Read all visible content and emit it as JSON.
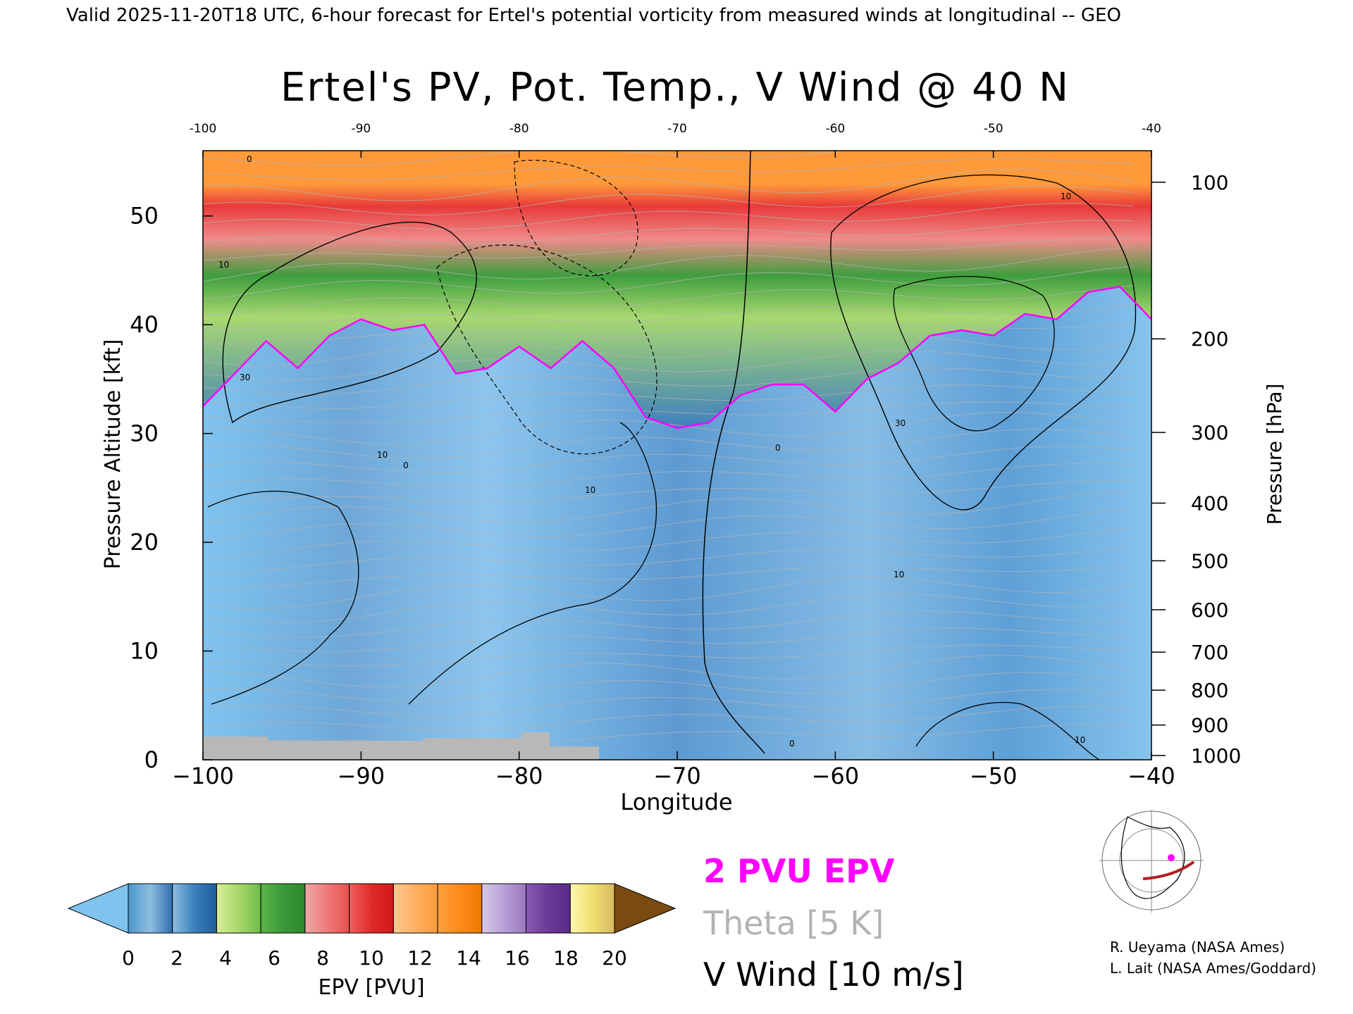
{
  "header": {
    "valid_line": "Valid 2025-11-20T18 UTC, 6-hour forecast for Ertel's potential vorticity from measured winds at longitudinal -- GEO"
  },
  "chart_data": {
    "type": "heatmap",
    "title": "Ertel's PV, Pot. Temp., V Wind @ 40 N",
    "xlabel": "Longitude",
    "ylabel": "Pressure Altitude [kft]",
    "y2label": "Pressure [hPa]",
    "xlim": [
      -100,
      -40
    ],
    "ylim": [
      0,
      56
    ],
    "x_ticks": [
      "−100",
      "−90",
      "−80",
      "−70",
      "−60",
      "−50",
      "−40"
    ],
    "x_top_ticks": [
      "-100",
      "-90",
      "-80",
      "-70",
      "-60",
      "-50",
      "-40"
    ],
    "x_tick_values": [
      -100,
      -90,
      -80,
      -70,
      -60,
      -50,
      -40
    ],
    "y_ticks": [
      "0",
      "10",
      "20",
      "30",
      "40",
      "50"
    ],
    "y_tick_values": [
      0,
      10,
      20,
      30,
      40,
      50
    ],
    "pressure_ticks": [
      {
        "label": "100",
        "kft": 53.1
      },
      {
        "label": "200",
        "kft": 38.7
      },
      {
        "label": "300",
        "kft": 30.1
      },
      {
        "label": "400",
        "kft": 23.6
      },
      {
        "label": "500",
        "kft": 18.3
      },
      {
        "label": "600",
        "kft": 13.8
      },
      {
        "label": "700",
        "kft": 9.9
      },
      {
        "label": "800",
        "kft": 6.4
      },
      {
        "label": "900",
        "kft": 3.2
      },
      {
        "label": "1000",
        "kft": 0.4
      }
    ],
    "tropopause_2pvu_kft": [
      {
        "lon": -100,
        "kft": 32.5
      },
      {
        "lon": -98,
        "kft": 35.5
      },
      {
        "lon": -96,
        "kft": 38.5
      },
      {
        "lon": -94,
        "kft": 36.0
      },
      {
        "lon": -92,
        "kft": 39.0
      },
      {
        "lon": -90,
        "kft": 40.5
      },
      {
        "lon": -88,
        "kft": 39.5
      },
      {
        "lon": -86,
        "kft": 40.0
      },
      {
        "lon": -84,
        "kft": 35.5
      },
      {
        "lon": -82,
        "kft": 36.0
      },
      {
        "lon": -80,
        "kft": 38.0
      },
      {
        "lon": -78,
        "kft": 36.0
      },
      {
        "lon": -76,
        "kft": 38.5
      },
      {
        "lon": -74,
        "kft": 36.0
      },
      {
        "lon": -72,
        "kft": 31.5
      },
      {
        "lon": -70,
        "kft": 30.5
      },
      {
        "lon": -68,
        "kft": 31.0
      },
      {
        "lon": -66,
        "kft": 33.5
      },
      {
        "lon": -64,
        "kft": 34.5
      },
      {
        "lon": -62,
        "kft": 34.5
      },
      {
        "lon": -60,
        "kft": 32.0
      },
      {
        "lon": -58,
        "kft": 35.0
      },
      {
        "lon": -56,
        "kft": 36.5
      },
      {
        "lon": -54,
        "kft": 39.0
      },
      {
        "lon": -52,
        "kft": 39.5
      },
      {
        "lon": -50,
        "kft": 39.0
      },
      {
        "lon": -48,
        "kft": 41.0
      },
      {
        "lon": -46,
        "kft": 40.5
      },
      {
        "lon": -44,
        "kft": 43.0
      },
      {
        "lon": -42,
        "kft": 43.5
      },
      {
        "lon": -40,
        "kft": 40.5
      }
    ],
    "contour_labels": [
      "0",
      "10",
      "30",
      "10",
      "0",
      "10",
      "30",
      "0",
      "10",
      "10",
      "0",
      "10"
    ],
    "colorbar": {
      "label": "EPV [PVU]",
      "tick_labels": [
        "0",
        "2",
        "4",
        "6",
        "8",
        "10",
        "12",
        "14",
        "16",
        "18",
        "20"
      ],
      "segments": [
        {
          "from": "#4a97cc",
          "mid": "#8fbde0",
          "to": "#2f6fae"
        },
        {
          "from": "#8fbde0",
          "mid": "#3a7fbe",
          "to": "#1f5d99"
        },
        {
          "from": "#d9ee9a",
          "mid": "#a7d86a",
          "to": "#6ebd4a"
        },
        {
          "from": "#5db548",
          "mid": "#3a9a3a",
          "to": "#2a8a2a"
        },
        {
          "from": "#f0a9a9",
          "mid": "#f07a7a",
          "to": "#e85050"
        },
        {
          "from": "#f06060",
          "mid": "#e02a2a",
          "to": "#d01818"
        },
        {
          "from": "#ffc890",
          "mid": "#ffb060",
          "to": "#ff9a3a"
        },
        {
          "from": "#ffa040",
          "mid": "#ff8a1a",
          "to": "#f07800"
        },
        {
          "from": "#d8c8e8",
          "mid": "#b8a0d8",
          "to": "#9a78c0"
        },
        {
          "from": "#8a5ab0",
          "mid": "#6a3a9a",
          "to": "#5a2a8a"
        },
        {
          "from": "#fff8b0",
          "mid": "#f0e070",
          "to": "#d8b860"
        }
      ],
      "under_color": "#7fc3ee",
      "over_color": "#7a4a10"
    },
    "legend": [
      {
        "label": "2 PVU EPV",
        "color": "#ff00ff"
      },
      {
        "label": "Theta [5 K]",
        "color": "#b3b3b3"
      },
      {
        "label": "V Wind [10 m/s]",
        "color": "#000000"
      }
    ]
  },
  "credits": {
    "line1": "R. Ueyama (NASA Ames)",
    "line2": "L. Lait (NASA Ames/Goddard)"
  }
}
